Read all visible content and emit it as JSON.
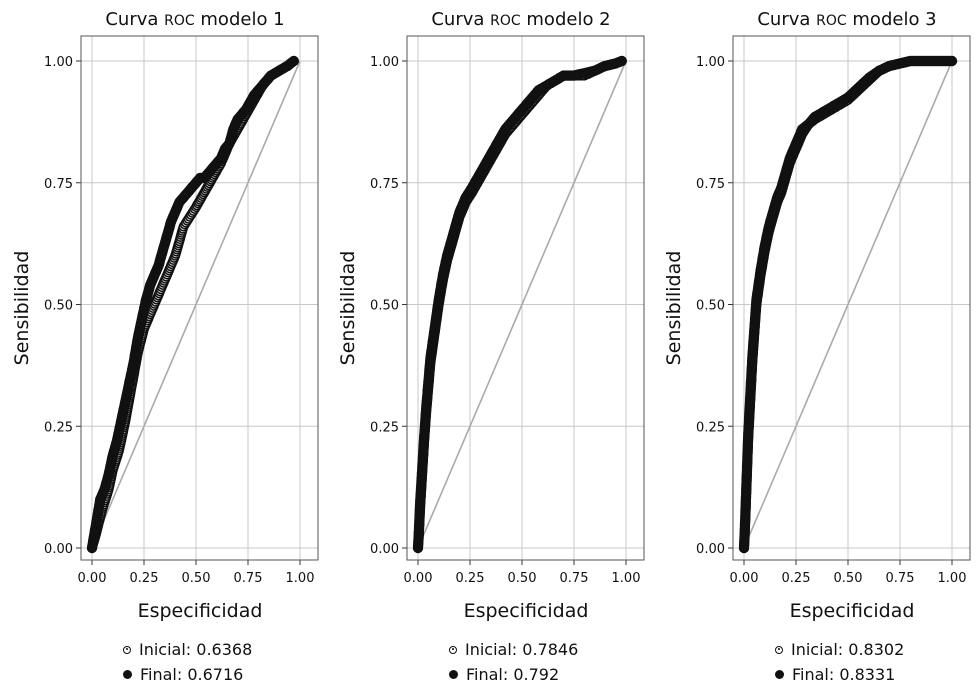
{
  "chart_data": [
    {
      "type": "line",
      "title_pre": "Curva ",
      "title_roc": "ROC",
      "title_post": " modelo 1",
      "xlabel": "Especificidad",
      "ylabel": "Sensibilidad",
      "xlim": [
        0,
        1
      ],
      "ylim": [
        0,
        1
      ],
      "xticks": [
        "0.00",
        "0.25",
        "0.50",
        "0.75",
        "1.00"
      ],
      "yticks": [
        "0.00",
        "0.25",
        "0.50",
        "0.75",
        "1.00"
      ],
      "grid": true,
      "legend_position": "bottom",
      "series": [
        {
          "name": "Inicial: 0.6368",
          "marker": "open",
          "x": [
            0.0,
            0.02,
            0.05,
            0.08,
            0.1,
            0.13,
            0.16,
            0.19,
            0.22,
            0.25,
            0.28,
            0.31,
            0.34,
            0.37,
            0.4,
            0.42,
            0.44,
            0.47,
            0.5,
            0.54,
            0.58,
            0.62,
            0.66,
            0.7,
            0.74,
            0.78,
            0.82,
            0.86,
            0.9,
            0.94,
            0.97
          ],
          "y": [
            0.0,
            0.03,
            0.08,
            0.12,
            0.16,
            0.2,
            0.26,
            0.33,
            0.4,
            0.45,
            0.48,
            0.51,
            0.54,
            0.57,
            0.6,
            0.63,
            0.66,
            0.68,
            0.7,
            0.73,
            0.76,
            0.79,
            0.83,
            0.86,
            0.89,
            0.92,
            0.95,
            0.97,
            0.98,
            0.99,
            1.0
          ]
        },
        {
          "name": "Final: 0.6716",
          "marker": "filled",
          "x": [
            0.0,
            0.02,
            0.04,
            0.06,
            0.08,
            0.1,
            0.12,
            0.14,
            0.16,
            0.18,
            0.2,
            0.22,
            0.24,
            0.26,
            0.28,
            0.3,
            0.32,
            0.34,
            0.36,
            0.38,
            0.4,
            0.42,
            0.44,
            0.46,
            0.48,
            0.5,
            0.52,
            0.54,
            0.56,
            0.58,
            0.6,
            0.62,
            0.64,
            0.66,
            0.68,
            0.7,
            0.74,
            0.78,
            0.82,
            0.86,
            0.9,
            0.94,
            0.97
          ],
          "y": [
            0.0,
            0.05,
            0.1,
            0.12,
            0.15,
            0.19,
            0.22,
            0.26,
            0.3,
            0.34,
            0.38,
            0.43,
            0.47,
            0.51,
            0.54,
            0.56,
            0.58,
            0.61,
            0.64,
            0.67,
            0.69,
            0.71,
            0.72,
            0.73,
            0.74,
            0.75,
            0.76,
            0.76,
            0.77,
            0.78,
            0.79,
            0.8,
            0.82,
            0.83,
            0.86,
            0.88,
            0.9,
            0.93,
            0.95,
            0.97,
            0.98,
            0.99,
            1.0
          ]
        }
      ]
    },
    {
      "type": "line",
      "title_pre": "Curva ",
      "title_roc": "ROC",
      "title_post": " modelo 2",
      "xlabel": "Especificidad",
      "ylabel": "Sensibilidad",
      "xlim": [
        0,
        1
      ],
      "ylim": [
        0,
        1
      ],
      "xticks": [
        "0.00",
        "0.25",
        "0.50",
        "0.75",
        "1.00"
      ],
      "yticks": [
        "0.00",
        "0.25",
        "0.50",
        "0.75",
        "1.00"
      ],
      "grid": true,
      "legend_position": "bottom",
      "series": [
        {
          "name": "Inicial: 0.7846",
          "marker": "open",
          "x": [
            0.0,
            0.005,
            0.01,
            0.02,
            0.03,
            0.04,
            0.05,
            0.06,
            0.08,
            0.1,
            0.12,
            0.14,
            0.16,
            0.18,
            0.2,
            0.23,
            0.26,
            0.3,
            0.34,
            0.38,
            0.42,
            0.46,
            0.5,
            0.54,
            0.58,
            0.62,
            0.66,
            0.7,
            0.75,
            0.8,
            0.85,
            0.9,
            0.95,
            0.98
          ],
          "y": [
            0.0,
            0.03,
            0.08,
            0.15,
            0.22,
            0.28,
            0.33,
            0.38,
            0.44,
            0.5,
            0.55,
            0.59,
            0.62,
            0.65,
            0.68,
            0.71,
            0.73,
            0.76,
            0.79,
            0.82,
            0.85,
            0.87,
            0.89,
            0.91,
            0.93,
            0.95,
            0.96,
            0.97,
            0.97,
            0.97,
            0.98,
            0.99,
            0.995,
            1.0
          ]
        },
        {
          "name": "Final: 0.792",
          "marker": "filled",
          "x": [
            0.0,
            0.005,
            0.01,
            0.02,
            0.03,
            0.04,
            0.05,
            0.06,
            0.08,
            0.1,
            0.12,
            0.14,
            0.16,
            0.18,
            0.2,
            0.23,
            0.26,
            0.3,
            0.34,
            0.38,
            0.42,
            0.46,
            0.5,
            0.54,
            0.58,
            0.62,
            0.66,
            0.7,
            0.75,
            0.8,
            0.85,
            0.9,
            0.95,
            0.98
          ],
          "y": [
            0.0,
            0.04,
            0.09,
            0.16,
            0.23,
            0.29,
            0.34,
            0.39,
            0.45,
            0.51,
            0.56,
            0.6,
            0.63,
            0.66,
            0.69,
            0.72,
            0.74,
            0.77,
            0.8,
            0.83,
            0.86,
            0.88,
            0.9,
            0.92,
            0.94,
            0.95,
            0.96,
            0.97,
            0.97,
            0.975,
            0.98,
            0.99,
            0.995,
            1.0
          ]
        }
      ]
    },
    {
      "type": "line",
      "title_pre": "Curva ",
      "title_roc": "ROC",
      "title_post": " modelo 3",
      "xlabel": "Especificidad",
      "ylabel": "Sensibilidad",
      "xlim": [
        0,
        1
      ],
      "ylim": [
        0,
        1
      ],
      "xticks": [
        "0.00",
        "0.25",
        "0.50",
        "0.75",
        "1.00"
      ],
      "yticks": [
        "0.00",
        "0.25",
        "0.50",
        "0.75",
        "1.00"
      ],
      "grid": true,
      "legend_position": "bottom",
      "series": [
        {
          "name": "Inicial: 0.8302",
          "marker": "open",
          "x": [
            0.0,
            0.005,
            0.01,
            0.015,
            0.02,
            0.03,
            0.04,
            0.05,
            0.06,
            0.08,
            0.1,
            0.12,
            0.14,
            0.16,
            0.18,
            0.2,
            0.22,
            0.25,
            0.28,
            0.31,
            0.34,
            0.38,
            0.42,
            0.46,
            0.5,
            0.55,
            0.6,
            0.65,
            0.7,
            0.75,
            0.8,
            0.85,
            0.9,
            0.95,
            1.0
          ],
          "y": [
            0.0,
            0.04,
            0.1,
            0.16,
            0.22,
            0.3,
            0.38,
            0.44,
            0.5,
            0.56,
            0.61,
            0.65,
            0.68,
            0.71,
            0.73,
            0.76,
            0.79,
            0.82,
            0.85,
            0.87,
            0.88,
            0.89,
            0.9,
            0.91,
            0.92,
            0.94,
            0.96,
            0.98,
            0.99,
            0.995,
            1.0,
            1.0,
            1.0,
            1.0,
            1.0
          ]
        },
        {
          "name": "Final: 0.8331",
          "marker": "filled",
          "x": [
            0.0,
            0.005,
            0.01,
            0.015,
            0.02,
            0.03,
            0.04,
            0.05,
            0.06,
            0.08,
            0.1,
            0.12,
            0.14,
            0.16,
            0.18,
            0.2,
            0.22,
            0.25,
            0.28,
            0.31,
            0.34,
            0.38,
            0.42,
            0.46,
            0.5,
            0.55,
            0.6,
            0.65,
            0.7,
            0.75,
            0.8,
            0.85,
            0.9,
            0.95,
            1.0
          ],
          "y": [
            0.0,
            0.05,
            0.11,
            0.17,
            0.23,
            0.31,
            0.39,
            0.45,
            0.51,
            0.57,
            0.62,
            0.66,
            0.69,
            0.72,
            0.74,
            0.77,
            0.8,
            0.83,
            0.86,
            0.87,
            0.885,
            0.895,
            0.905,
            0.915,
            0.925,
            0.945,
            0.965,
            0.98,
            0.99,
            0.995,
            1.0,
            1.0,
            1.0,
            1.0,
            1.0
          ]
        }
      ]
    }
  ]
}
